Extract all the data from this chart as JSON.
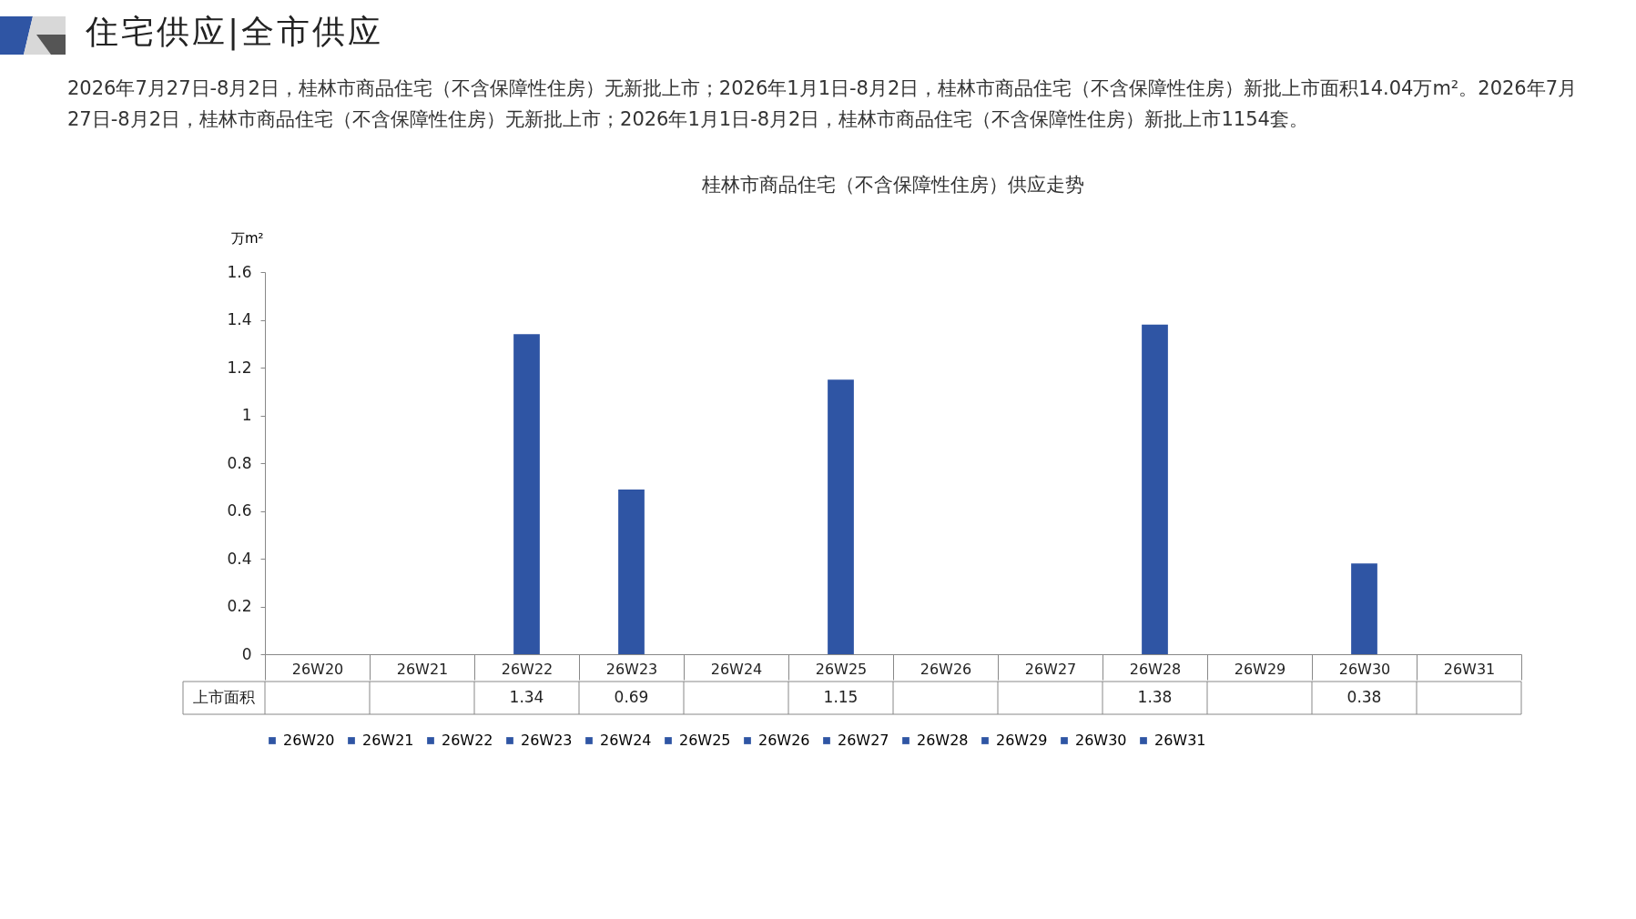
{
  "chart_data": {
    "type": "bar",
    "title": "桂林市商品住宅（不含保障性住房）供应走势",
    "annotations": [
      "住宅供应|全市供应",
      "2026年7月27日-8月2日，桂林市商品住宅（不含保障性住房）无新批上市；2026年1月1日-8月2日，桂林市商品住宅（不含保障性住房）新批上市面积14.04万m²。2026年7月27日-8月2日，桂林市商品住宅（不含保障性住房）无新批上市；2026年1月1日-8月2日，桂林市商品住宅（不含保障性住房）新批上市1154套。",
      "上市面积"
    ],
    "ylabel": "万m²",
    "categories": [
      "26W20",
      "26W21",
      "26W22",
      "26W23",
      "26W24",
      "26W25",
      "26W26",
      "26W27",
      "26W28",
      "26W29",
      "26W30",
      "26W31"
    ],
    "series": [
      {
        "name": "26W20",
        "color": "#2f55a4",
        "values": [
          null,
          null,
          null,
          null,
          null,
          null,
          null,
          null,
          null,
          null,
          null,
          null
        ]
      },
      {
        "name": "26W21",
        "color": "#2f55a4",
        "values": [
          null,
          null,
          null,
          null,
          null,
          null,
          null,
          null,
          null,
          null,
          null,
          null
        ]
      },
      {
        "name": "26W22",
        "color": "#2f55a4",
        "values": [
          null,
          null,
          1.34,
          null,
          null,
          null,
          null,
          null,
          null,
          null,
          null,
          null
        ]
      },
      {
        "name": "26W23",
        "color": "#2f55a4",
        "values": [
          null,
          null,
          null,
          0.69,
          null,
          null,
          null,
          null,
          null,
          null,
          null,
          null
        ]
      },
      {
        "name": "26W24",
        "color": "#2f55a4",
        "values": [
          null,
          null,
          null,
          null,
          null,
          null,
          null,
          null,
          null,
          null,
          null,
          null
        ]
      },
      {
        "name": "26W25",
        "color": "#2f55a4",
        "values": [
          null,
          null,
          null,
          null,
          null,
          1.15,
          null,
          null,
          null,
          null,
          null,
          null
        ]
      },
      {
        "name": "26W26",
        "color": "#2f55a4",
        "values": [
          null,
          null,
          null,
          null,
          null,
          null,
          null,
          null,
          null,
          null,
          null,
          null
        ]
      },
      {
        "name": "26W27",
        "color": "#2f55a4",
        "values": [
          null,
          null,
          null,
          null,
          null,
          null,
          null,
          null,
          null,
          null,
          null,
          null
        ]
      },
      {
        "name": "26W28",
        "color": "#2f55a4",
        "values": [
          null,
          null,
          null,
          null,
          null,
          null,
          null,
          null,
          1.38,
          null,
          null,
          null
        ]
      },
      {
        "name": "26W29",
        "color": "#2f55a4",
        "values": [
          null,
          null,
          null,
          null,
          null,
          null,
          null,
          null,
          null,
          null,
          null,
          null
        ]
      },
      {
        "name": "26W30",
        "color": "#2f55a4",
        "values": [
          null,
          null,
          null,
          null,
          null,
          null,
          null,
          null,
          null,
          null,
          0.38,
          null
        ]
      },
      {
        "name": "26W31",
        "color": "#2f55a4",
        "values": [
          null,
          null,
          null,
          null,
          null,
          null,
          null,
          null,
          null,
          null,
          null,
          null
        ]
      }
    ],
    "ylim": [
      0,
      1.6
    ],
    "yticks": [
      0,
      0.2,
      0.4,
      0.6,
      0.8,
      1,
      1.2,
      1.4,
      1.6
    ],
    "data_labels": true,
    "legend": "bottom",
    "grid": false
  }
}
